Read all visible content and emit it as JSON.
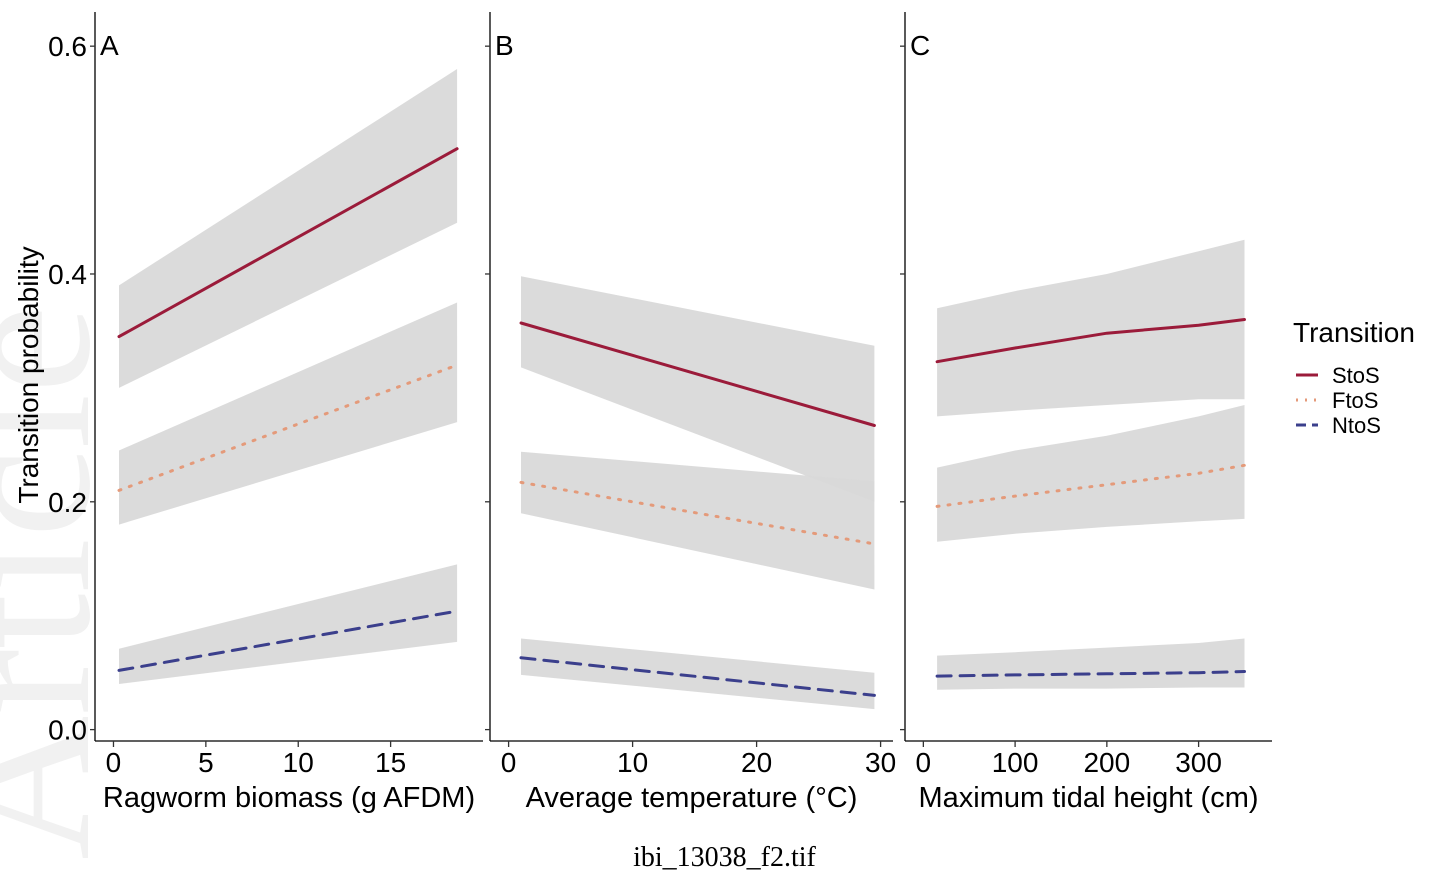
{
  "figure": {
    "y_axis_title": "Transition probability",
    "caption": "ibi_13038_f2.tif"
  },
  "legend": {
    "title": "Transition",
    "placement": "right"
  },
  "colors": {
    "StoS": "#9b1b3a",
    "FtoS": "#e49a7a",
    "NtoS": "#3b3f8c",
    "ribbon": "#d9d9d9"
  },
  "chart_data": [
    {
      "type": "line",
      "panel": "A",
      "xlabel": "Ragworm biomass (g AFDM)",
      "ylabel": "Transition probability",
      "xlim": [
        -1,
        20
      ],
      "ylim": [
        -0.01,
        0.63
      ],
      "x_ticks": [
        0,
        5,
        10,
        15
      ],
      "y_ticks": [
        0.0,
        0.2,
        0.4,
        0.6
      ],
      "grid": false,
      "x": [
        0.3,
        18.6
      ],
      "series": [
        {
          "name": "StoS",
          "style": "solid",
          "values": [
            0.345,
            0.51
          ],
          "lower": [
            0.3,
            0.445
          ],
          "upper": [
            0.39,
            0.58
          ]
        },
        {
          "name": "FtoS",
          "style": "dotted",
          "values": [
            0.21,
            0.32
          ],
          "lower": [
            0.18,
            0.27
          ],
          "upper": [
            0.245,
            0.375
          ]
        },
        {
          "name": "NtoS",
          "style": "dashed",
          "values": [
            0.052,
            0.104
          ],
          "lower": [
            0.04,
            0.077
          ],
          "upper": [
            0.071,
            0.145
          ]
        }
      ]
    },
    {
      "type": "line",
      "panel": "B",
      "xlabel": "Average temperature (°C)",
      "ylabel": "",
      "xlim": [
        -1.5,
        31
      ],
      "ylim": [
        -0.01,
        0.63
      ],
      "x_ticks": [
        0,
        10,
        20,
        30
      ],
      "y_ticks": [
        0.0,
        0.2,
        0.4,
        0.6
      ],
      "grid": false,
      "x": [
        1,
        29.5
      ],
      "series": [
        {
          "name": "StoS",
          "style": "solid",
          "values": [
            0.357,
            0.267
          ],
          "lower": [
            0.318,
            0.2
          ],
          "upper": [
            0.398,
            0.337
          ]
        },
        {
          "name": "FtoS",
          "style": "dotted",
          "values": [
            0.217,
            0.163
          ],
          "lower": [
            0.19,
            0.123
          ],
          "upper": [
            0.244,
            0.218
          ]
        },
        {
          "name": "NtoS",
          "style": "dashed",
          "values": [
            0.063,
            0.03
          ],
          "lower": [
            0.048,
            0.018
          ],
          "upper": [
            0.08,
            0.05
          ]
        }
      ]
    },
    {
      "type": "line",
      "panel": "C",
      "xlabel": "Maximum tidal height (cm)",
      "ylabel": "",
      "xlim": [
        -20,
        380
      ],
      "ylim": [
        -0.01,
        0.63
      ],
      "x_ticks": [
        0,
        100,
        200,
        300
      ],
      "y_ticks": [
        0.0,
        0.2,
        0.4,
        0.6
      ],
      "grid": false,
      "x": [
        15,
        100,
        200,
        300,
        350
      ],
      "series": [
        {
          "name": "StoS",
          "style": "solid",
          "values": [
            0.323,
            0.335,
            0.348,
            0.355,
            0.36
          ],
          "lower": [
            0.275,
            0.28,
            0.285,
            0.29,
            0.29
          ],
          "upper": [
            0.37,
            0.385,
            0.4,
            0.42,
            0.43
          ]
        },
        {
          "name": "FtoS",
          "style": "dotted",
          "values": [
            0.196,
            0.205,
            0.215,
            0.225,
            0.232
          ],
          "lower": [
            0.165,
            0.172,
            0.178,
            0.183,
            0.185
          ],
          "upper": [
            0.23,
            0.245,
            0.258,
            0.275,
            0.285
          ]
        },
        {
          "name": "NtoS",
          "style": "dashed",
          "values": [
            0.047,
            0.048,
            0.049,
            0.05,
            0.051
          ],
          "lower": [
            0.035,
            0.036,
            0.036,
            0.037,
            0.037
          ],
          "upper": [
            0.065,
            0.068,
            0.072,
            0.076,
            0.08
          ]
        }
      ]
    }
  ]
}
